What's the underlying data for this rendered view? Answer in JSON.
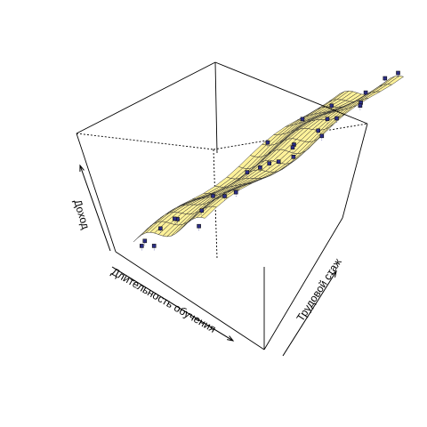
{
  "chart_data": {
    "type": "surface3d",
    "title": "",
    "xlabel": "Длительность обучения",
    "ylabel": "Трудовой стаж",
    "zlabel": "Доход",
    "grid": false,
    "box": true,
    "surface_color": "#FFF29A",
    "mesh_color": "#333333",
    "point_color": "#2C2E87",
    "surface": {
      "description_free_note": "",
      "x": [
        0,
        0.0588,
        0.1176,
        0.1765,
        0.2353,
        0.2941,
        0.3529,
        0.4118,
        0.4706,
        0.5294,
        0.5882,
        0.6471,
        0.7059,
        0.7647,
        0.8235,
        0.8824,
        0.9412,
        1.0
      ],
      "y": [
        0,
        0.0588,
        0.1176,
        0.1765,
        0.2353,
        0.2941,
        0.3529,
        0.4118,
        0.4706,
        0.5294,
        0.5882,
        0.6471,
        0.7059,
        0.7647,
        0.8235,
        0.8824,
        0.9412,
        1.0
      ]
    },
    "points": [
      {
        "x": 0.02,
        "y": 0.05,
        "z": 0.12
      },
      {
        "x": 0.06,
        "y": 0.02,
        "z": 0.1
      },
      {
        "x": 0.1,
        "y": 0.1,
        "z": 0.2
      },
      {
        "x": 0.15,
        "y": 0.05,
        "z": 0.08
      },
      {
        "x": 0.2,
        "y": 0.15,
        "z": 0.25
      },
      {
        "x": 0.28,
        "y": 0.3,
        "z": 0.35
      },
      {
        "x": 0.3,
        "y": 0.1,
        "z": 0.3
      },
      {
        "x": 0.35,
        "y": 0.55,
        "z": 0.65
      },
      {
        "x": 0.4,
        "y": 0.2,
        "z": 0.3
      },
      {
        "x": 0.42,
        "y": 0.7,
        "z": 0.75
      },
      {
        "x": 0.48,
        "y": 0.4,
        "z": 0.5
      },
      {
        "x": 0.5,
        "y": 0.15,
        "z": 0.2
      },
      {
        "x": 0.55,
        "y": 0.8,
        "z": 0.8
      },
      {
        "x": 0.58,
        "y": 0.6,
        "z": 0.6
      },
      {
        "x": 0.6,
        "y": 0.3,
        "z": 0.4
      },
      {
        "x": 0.63,
        "y": 0.75,
        "z": 0.72
      },
      {
        "x": 0.65,
        "y": 0.45,
        "z": 0.55
      },
      {
        "x": 0.7,
        "y": 0.55,
        "z": 0.62
      },
      {
        "x": 0.72,
        "y": 0.2,
        "z": 0.45
      },
      {
        "x": 0.75,
        "y": 0.9,
        "z": 0.85
      },
      {
        "x": 0.78,
        "y": 0.65,
        "z": 0.7
      },
      {
        "x": 0.8,
        "y": 0.35,
        "z": 0.6
      },
      {
        "x": 0.82,
        "y": 0.85,
        "z": 0.8
      },
      {
        "x": 0.85,
        "y": 0.5,
        "z": 0.58
      },
      {
        "x": 0.88,
        "y": 0.95,
        "z": 0.95
      },
      {
        "x": 0.9,
        "y": 0.7,
        "z": 0.78
      },
      {
        "x": 0.92,
        "y": 0.4,
        "z": 0.62
      },
      {
        "x": 0.95,
        "y": 0.8,
        "z": 0.82
      },
      {
        "x": 0.97,
        "y": 0.6,
        "z": 0.7
      },
      {
        "x": 0.98,
        "y": 0.98,
        "z": 0.98
      }
    ]
  }
}
